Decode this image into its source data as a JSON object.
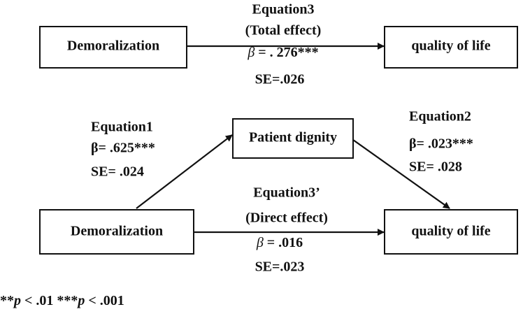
{
  "top": {
    "source": "Demoralization",
    "target": "quality of life",
    "path": {
      "equation": "Equation3",
      "effect": "(Total effect)",
      "beta_symbol": "β",
      "beta": " = . 276***",
      "se": "SE=.026"
    }
  },
  "bottom": {
    "source": "Demoralization",
    "mediator": "Patient dignity",
    "target": "quality of life",
    "path_a": {
      "equation": "Equation1",
      "beta": "β= .625***",
      "se": "SE= .024"
    },
    "path_b": {
      "equation": "Equation2",
      "beta": "β= .023***",
      "se": "SE= .028"
    },
    "path_c": {
      "equation": "Equation3’",
      "effect": "(Direct effect)",
      "beta_symbol": "β",
      "beta": " = .016",
      "se": "SE=.023"
    }
  },
  "footnote": [
    "**",
    "p",
    " < .01 ***",
    "p",
    " < .001"
  ]
}
